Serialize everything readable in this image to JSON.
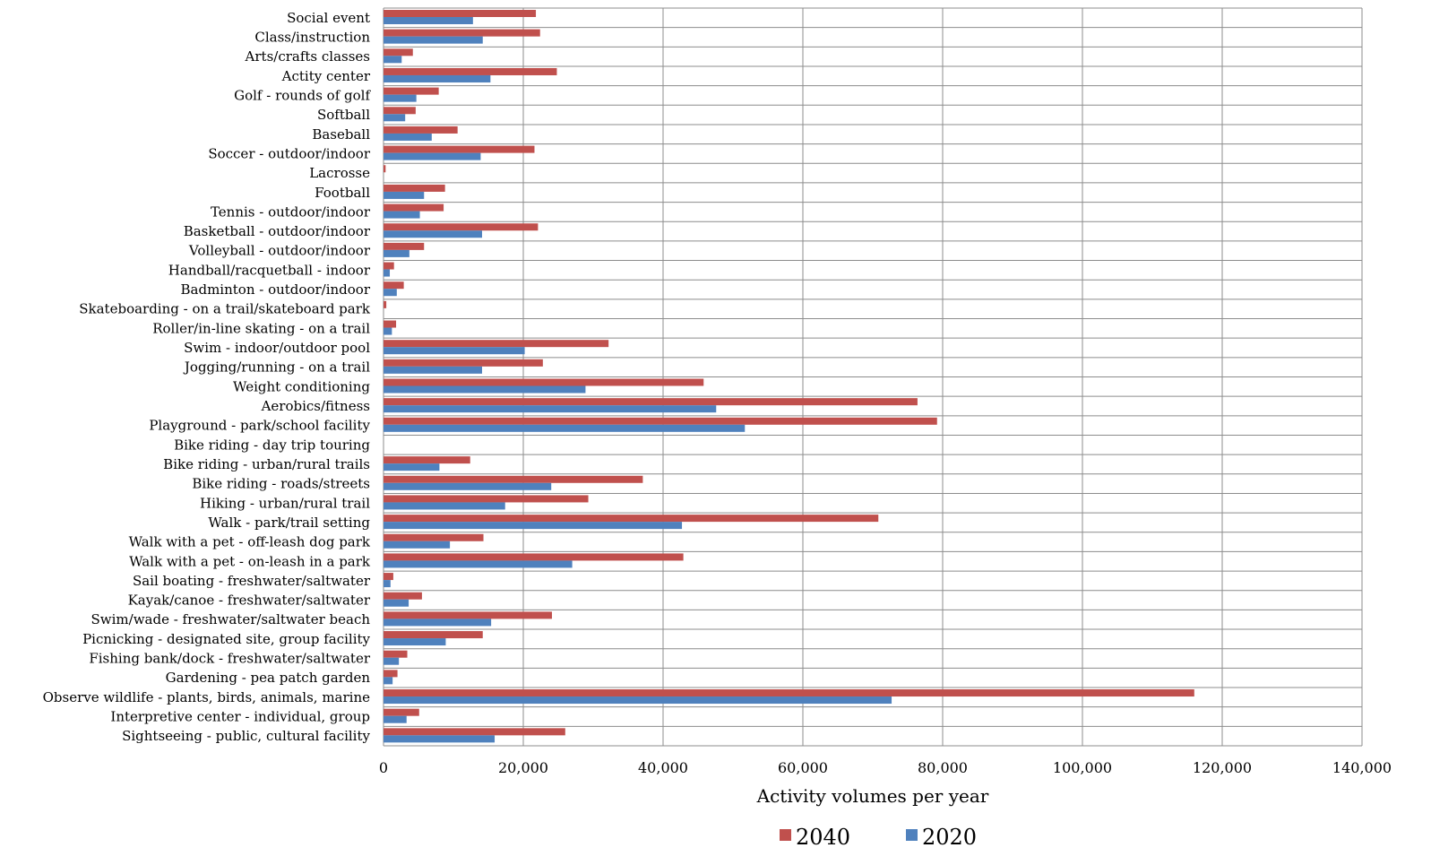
{
  "chart_data": {
    "type": "bar",
    "orientation": "horizontal",
    "categories": [
      "Social event",
      "Class/instruction",
      "Arts/crafts classes",
      "Actity center",
      "Golf - rounds of golf",
      "Softball",
      "Baseball",
      "Soccer - outdoor/indoor",
      "Lacrosse",
      "Football",
      "Tennis - outdoor/indoor",
      "Basketball - outdoor/indoor",
      "Volleyball - outdoor/indoor",
      "Handball/racquetball - indoor",
      "Badminton - outdoor/indoor",
      "Skateboarding - on a trail/skateboard park",
      "Roller/in-line skating - on a trail",
      "Swim - indoor/outdoor pool",
      "Jogging/running - on a trail",
      "Weight conditioning",
      "Aerobics/fitness",
      "Playground - park/school facility",
      "Bike riding - day trip touring",
      "Bike riding - urban/rural trails",
      "Bike riding - roads/streets",
      "Hiking - urban/rural trail",
      "Walk - park/trail setting",
      "Walk with a pet - off-leash dog park",
      "Walk with a pet - on-leash in a park",
      "Sail boating - freshwater/saltwater",
      "Kayak/canoe - freshwater/saltwater",
      "Swim/wade - freshwater/saltwater beach",
      "Picnicking - designated site, group facility",
      "Fishing bank/dock - freshwater/saltwater",
      "Gardening - pea patch garden",
      "Observe wildlife - plants, birds, animals, marine",
      "Interpretive center - individual, group",
      "Sightseeing - public, cultural facility"
    ],
    "series": [
      {
        "name": "2040",
        "color": "#c0504d",
        "values": [
          21800,
          22400,
          4200,
          24800,
          7900,
          4600,
          10600,
          21600,
          300,
          8800,
          8600,
          22100,
          5800,
          1500,
          2900,
          400,
          1800,
          32200,
          22800,
          45800,
          76400,
          79200,
          0,
          12400,
          37100,
          29300,
          70800,
          14300,
          42900,
          1400,
          5500,
          24100,
          14200,
          3400,
          2000,
          116000,
          5100,
          26000
        ]
      },
      {
        "name": "2020",
        "color": "#4f81bd",
        "values": [
          12800,
          14200,
          2600,
          15300,
          4700,
          3100,
          6900,
          13900,
          0,
          5800,
          5200,
          14100,
          3700,
          900,
          1900,
          0,
          1200,
          20200,
          14100,
          28900,
          47600,
          51700,
          0,
          8000,
          24000,
          17400,
          42700,
          9500,
          27000,
          1000,
          3600,
          15400,
          8900,
          2200,
          1300,
          72700,
          3300,
          15900
        ]
      }
    ],
    "xlabel": "Activity volumes per year",
    "xlim": [
      0,
      140000
    ],
    "xticks": [
      0,
      20000,
      40000,
      60000,
      80000,
      100000,
      120000,
      140000
    ],
    "xtick_labels": [
      "0",
      "20,000",
      "40,000",
      "60,000",
      "80,000",
      "100,000",
      "120,000",
      "140,000"
    ],
    "grid": true,
    "legend": {
      "position": "bottom",
      "order": [
        "2040",
        "2020"
      ]
    }
  }
}
